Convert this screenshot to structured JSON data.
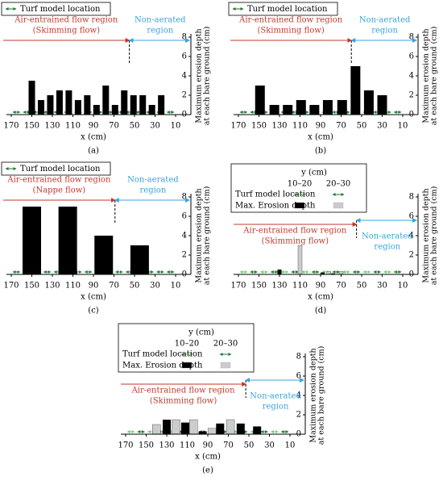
{
  "chart_data": [
    {
      "type": "bar",
      "panel": "(a)",
      "legend": "Turf model location",
      "regions": [
        {
          "text": [
            "Air-entrained flow region",
            "(Skimming flow)"
          ],
          "color": "#c0392b"
        },
        {
          "text": [
            "Non-aerated",
            "region"
          ],
          "color": "#3ba3dc"
        }
      ],
      "boundary_x": 55,
      "xlabel": "x (cm)",
      "ylabel": [
        "Maximum erosion depth",
        "at each bare ground (cm)"
      ],
      "xlim": [
        170,
        10
      ],
      "ylim": [
        0,
        8
      ],
      "xticks": [
        170,
        150,
        130,
        110,
        90,
        70,
        50,
        30,
        10
      ],
      "yticks": [
        0,
        2,
        4,
        6,
        8
      ],
      "series": [
        {
          "color": "#000000",
          "x": [
            150,
            141,
            132,
            123,
            114,
            105,
            96,
            87,
            78,
            69,
            60,
            51,
            42,
            33,
            24
          ],
          "values": [
            3.5,
            1.5,
            2,
            2.5,
            2.5,
            1.5,
            2,
            1,
            3,
            1,
            2.5,
            2,
            2,
            1,
            2
          ]
        }
      ]
    },
    {
      "type": "bar",
      "panel": "(b)",
      "legend": "Turf model location",
      "regions": [
        {
          "text": [
            "Air-entrained flow region",
            "(Skimming flow)"
          ],
          "color": "#c0392b"
        },
        {
          "text": [
            "Non-aerated",
            "region"
          ],
          "color": "#3ba3dc"
        }
      ],
      "boundary_x": 60,
      "xlabel": "x (cm)",
      "ylabel": [
        "Maximum erosion depth",
        "at each bare ground (cm)"
      ],
      "xlim": [
        170,
        10
      ],
      "ylim": [
        0,
        8
      ],
      "xticks": [
        170,
        150,
        130,
        110,
        90,
        70,
        50,
        30,
        10
      ],
      "yticks": [
        0,
        2,
        4,
        6,
        8
      ],
      "series": [
        {
          "color": "#000000",
          "x": [
            149,
            135,
            122,
            109,
            96,
            83,
            69,
            56,
            43,
            30
          ],
          "values": [
            3,
            1,
            1,
            1.5,
            1,
            1.5,
            1.5,
            5,
            2.5,
            2
          ]
        }
      ]
    },
    {
      "type": "bar",
      "panel": "(c)",
      "legend": "Turf model location",
      "regions": [
        {
          "text": [
            "Air-entrained flow region",
            "(Nappe flow)"
          ],
          "color": "#c0392b"
        },
        {
          "text": [
            "Non-aerated",
            "region"
          ],
          "color": "#3ba3dc"
        }
      ],
      "boundary_x": 69,
      "xlabel": "x (cm)",
      "ylabel": [
        "Maximum erosion depth",
        "at each bare ground (cm)"
      ],
      "xlim": [
        170,
        10
      ],
      "ylim": [
        0,
        8
      ],
      "xticks": [
        170,
        150,
        130,
        110,
        90,
        70,
        50,
        30,
        10
      ],
      "yticks": [
        0,
        2,
        4,
        6,
        8
      ],
      "series": [
        {
          "color": "#000000",
          "x": [
            150,
            115,
            80,
            45
          ],
          "values": [
            7,
            7,
            4,
            3
          ]
        }
      ]
    },
    {
      "type": "bar",
      "panel": "(d)",
      "legend": {
        "title": "y (cm)",
        "rows": [
          "Turf model location",
          "Max. Erosion depth"
        ]
      },
      "regions": [
        {
          "text": [
            "Air-entrained flow region",
            "(Skimming flow)"
          ],
          "color": "#c0392b"
        },
        {
          "text": [
            "Non-aerated",
            "region"
          ],
          "color": "#3ba3dc"
        }
      ],
      "boundary_x": 55,
      "xlabel": "x (cm)",
      "ylabel": [
        "Maximum erosion depth",
        "at each bare ground (cm)"
      ],
      "xlim": [
        170,
        10
      ],
      "ylim": [
        0,
        8
      ],
      "xticks": [
        170,
        150,
        130,
        110,
        90,
        70,
        50,
        30,
        10
      ],
      "yticks": [
        0,
        2,
        4,
        6,
        8
      ],
      "series": [
        {
          "name": "10–20",
          "color": "#000000",
          "x": [
            130,
            88,
            78
          ],
          "values": [
            0.5,
            0.2,
            0.1
          ]
        },
        {
          "name": "20–30",
          "color": "#cccccc",
          "x": [
            110,
            82,
            70
          ],
          "values": [
            3,
            0.3,
            0.3
          ]
        }
      ]
    },
    {
      "type": "bar",
      "panel": "(e)",
      "legend": {
        "title": "y (cm)",
        "rows": [
          "Turf model location",
          "Max. Erosion depth"
        ]
      },
      "regions": [
        {
          "text": [
            "Air-entrained flow region",
            "(Skimming flow)"
          ],
          "color": "#c0392b"
        },
        {
          "text": [
            "Non-aerated",
            "region"
          ],
          "color": "#3ba3dc"
        }
      ],
      "boundary_x": 53,
      "xlabel": "x (cm)",
      "ylabel": [
        "Maximum erosion depth",
        "at each bare ground (cm)"
      ],
      "xlim": [
        170,
        10
      ],
      "ylim": [
        0,
        8
      ],
      "xticks": [
        170,
        150,
        130,
        110,
        90,
        70,
        50,
        30,
        10
      ],
      "yticks": [
        0,
        2,
        4,
        6,
        8
      ],
      "series": [
        {
          "name": "10–20",
          "color": "#000000",
          "x": [
            130,
            112,
            95,
            78,
            58,
            42
          ],
          "values": [
            1.5,
            1.2,
            0.3,
            1.1,
            1.1,
            0.8
          ]
        },
        {
          "name": "20–30",
          "color": "#cccccc",
          "x": [
            140,
            121,
            104,
            86,
            68
          ],
          "values": [
            1.0,
            1.5,
            1.5,
            0.6,
            1.5
          ]
        }
      ]
    }
  ]
}
